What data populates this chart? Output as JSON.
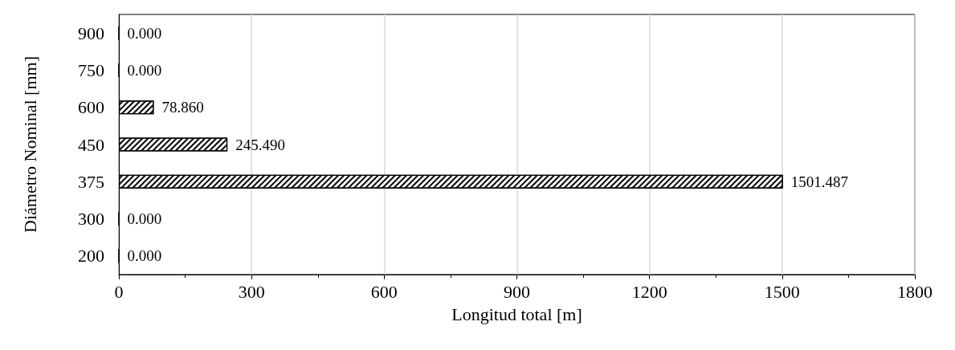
{
  "chart_data": {
    "type": "bar",
    "orientation": "horizontal",
    "xlabel": "Longitud total [m]",
    "ylabel": "Diámetro Nominal [mm]",
    "categories": [
      "900",
      "750",
      "600",
      "450",
      "375",
      "300",
      "200"
    ],
    "values": [
      0,
      0,
      78.86,
      245.49,
      1501.487,
      0,
      0
    ],
    "value_labels": [
      "0.000",
      "0.000",
      "78.860",
      "245.490",
      "1501.487",
      "0.000",
      "0.000"
    ],
    "color": "#000000",
    "xlim": [
      0,
      1800
    ],
    "xticks": [
      0,
      300,
      600,
      900,
      1200,
      1500,
      1800
    ],
    "grid": "x"
  }
}
